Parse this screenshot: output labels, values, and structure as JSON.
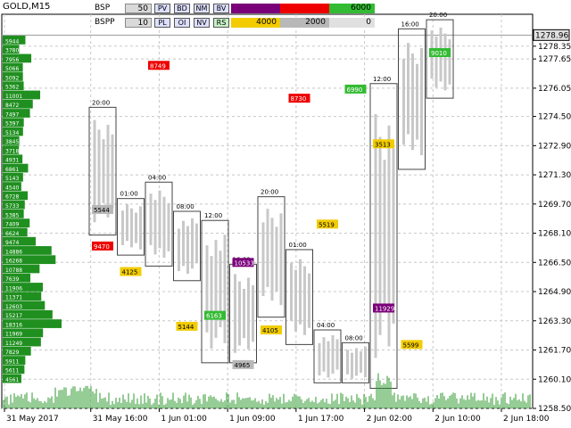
{
  "window": {
    "symbol_title": "GOLD,M15"
  },
  "control_panel": {
    "row1": {
      "label": "BSP",
      "value": "50",
      "buttons": [
        "PV",
        "BD",
        "NM",
        "BV"
      ],
      "bars": [
        {
          "text": "10000",
          "color": "#7a007a"
        },
        {
          "text": "8000",
          "color": "#ee0000"
        },
        {
          "text": "6000",
          "color": "#33bb33"
        }
      ]
    },
    "row2": {
      "label": "BSPP",
      "value": "10",
      "buttons": [
        "PL",
        "OI",
        "NV",
        "RS"
      ],
      "bars": [
        {
          "text": "4000",
          "color": "#f2cc00"
        },
        {
          "text": "2000",
          "color": "#b8b8b8"
        },
        {
          "text": "0",
          "color": "#e0e0e0"
        }
      ]
    }
  },
  "chart_data": {
    "type": "candlestick-volume-profile",
    "symbol": "GOLD",
    "timeframe": "M15",
    "current_price": "1278.96",
    "price_axis": {
      "ticks": [
        "1278.35",
        "1277.65",
        "1276.05",
        "1274.50",
        "1272.90",
        "1271.30",
        "1269.70",
        "1268.10",
        "1266.50",
        "1264.90",
        "1263.30",
        "1261.70",
        "1260.10",
        "1258.50"
      ],
      "range": [
        1258.5,
        1280.1
      ]
    },
    "time_axis": {
      "ticks": [
        "31 May 2017",
        "31 May 16:00",
        "1 Jun 01:00",
        "1 Jun 09:00",
        "1 Jun 17:00",
        "2 Jun 02:00",
        "2 Jun 10:00",
        "2 Jun 18:00"
      ]
    },
    "session_boxes": [
      {
        "label": "20:00",
        "high": 1275.0,
        "low": 1268.0
      },
      {
        "label": "01:00",
        "high": 1270.0,
        "low": 1266.9
      },
      {
        "label": "04:00",
        "high": 1270.9,
        "low": 1266.3
      },
      {
        "label": "08:00",
        "high": 1269.3,
        "low": 1265.5
      },
      {
        "label": "12:00",
        "high": 1268.8,
        "low": 1261.0
      },
      {
        "label": "16:00",
        "high": 1266.4,
        "low": 1261.0
      },
      {
        "label": "20:00",
        "high": 1270.1,
        "low": 1263.5
      },
      {
        "label": "01:00",
        "high": 1267.2,
        "low": 1262.0
      },
      {
        "label": "04:00",
        "high": 1262.8,
        "low": 1259.9
      },
      {
        "label": "08:00",
        "high": 1262.1,
        "low": 1259.9
      },
      {
        "label": "12:00",
        "high": 1276.3,
        "low": 1259.6
      },
      {
        "label": "16:00",
        "high": 1279.3,
        "low": 1271.6
      },
      {
        "label": "20:00",
        "high": 1279.8,
        "low": 1275.5
      }
    ],
    "level_labels": [
      {
        "text": "9470",
        "price": 1267.4,
        "color": "#ee0000"
      },
      {
        "text": "10533",
        "price": 1266.5,
        "color": "#7a007a"
      },
      {
        "text": "11929",
        "price": 1264.0,
        "color": "#7a007a"
      },
      {
        "text": "8749",
        "price": 1277.3,
        "color": "#ee0000"
      },
      {
        "text": "8730",
        "price": 1275.5,
        "color": "#ee0000"
      },
      {
        "text": "9010",
        "price": 1278.0,
        "color": "#33bb33"
      },
      {
        "text": "6163",
        "price": 1263.6,
        "color": "#33bb33"
      },
      {
        "text": "6990",
        "price": 1276.0,
        "color": "#33bb33"
      },
      {
        "text": "4125",
        "price": 1266.0,
        "color": "#f2cc00"
      },
      {
        "text": "4105",
        "price": 1262.8,
        "color": "#f2cc00"
      },
      {
        "text": "5599",
        "price": 1262.0,
        "color": "#f2cc00"
      },
      {
        "text": "5144",
        "price": 1263.0,
        "color": "#f2cc00"
      },
      {
        "text": "5519",
        "price": 1268.6,
        "color": "#f2cc00"
      },
      {
        "text": "5544",
        "price": 1269.4,
        "color": "#b8b8b8"
      },
      {
        "text": "4965",
        "price": 1260.9,
        "color": "#b8b8b8"
      },
      {
        "text": "3513",
        "price": 1273.0,
        "color": "#f2cc00"
      }
    ],
    "profile_labels": [
      "5944",
      "3780",
      "7956",
      "5066",
      "5092",
      "5362",
      "11001",
      "8472",
      "7497",
      "5397",
      "5134",
      "3845",
      "3718",
      "4931",
      "6861",
      "5143",
      "4540",
      "6728",
      "5733",
      "5385",
      "7409",
      "6624",
      "9474",
      "14886",
      "16268",
      "10788",
      "7639",
      "11906",
      "11371",
      "12603",
      "15217",
      "18316",
      "11969",
      "11249",
      "7829",
      "5911",
      "5611",
      "4561"
    ]
  }
}
